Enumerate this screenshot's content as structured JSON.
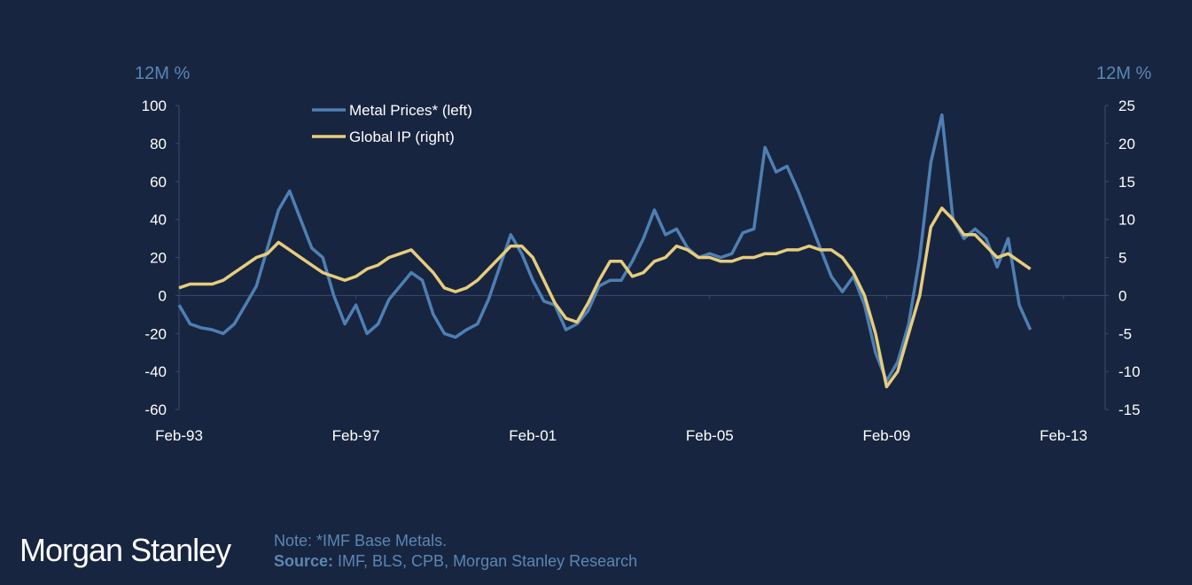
{
  "brand": "Morgan Stanley",
  "footer": {
    "note": "Note: *IMF Base Metals.",
    "source_label": "Source:",
    "source_text": " IMF, BLS, CPB, Morgan Stanley Research"
  },
  "colors": {
    "background": "#182540",
    "metal": "#4f7fb3",
    "ip": "#e6cd7c",
    "axis": "#3a4a6b",
    "unit_label": "#5b86b5"
  },
  "chart_data": {
    "type": "line",
    "title": "",
    "xlabel": "",
    "ylabel_left": "12M %",
    "ylabel_right": "12M %",
    "ylim_left": [
      -60,
      100
    ],
    "ylim_right": [
      -15,
      25
    ],
    "yticks_left": [
      -60,
      -40,
      -20,
      0,
      20,
      40,
      60,
      80,
      100
    ],
    "yticks_right": [
      -15,
      -10,
      -5,
      0,
      5,
      10,
      15,
      20,
      25
    ],
    "xlim": [
      "Feb-93",
      "Feb-13"
    ],
    "xticks": [
      "Feb-93",
      "Feb-97",
      "Feb-01",
      "Feb-05",
      "Feb-09",
      "Feb-13"
    ],
    "legend_position": "top-left",
    "x": [
      "Feb-93",
      "May-93",
      "Aug-93",
      "Nov-93",
      "Feb-94",
      "May-94",
      "Aug-94",
      "Nov-94",
      "Feb-95",
      "May-95",
      "Aug-95",
      "Nov-95",
      "Feb-96",
      "May-96",
      "Aug-96",
      "Nov-96",
      "Feb-97",
      "May-97",
      "Aug-97",
      "Nov-97",
      "Feb-98",
      "May-98",
      "Aug-98",
      "Nov-98",
      "Feb-99",
      "May-99",
      "Aug-99",
      "Nov-99",
      "Feb-00",
      "May-00",
      "Aug-00",
      "Nov-00",
      "Feb-01",
      "May-01",
      "Aug-01",
      "Nov-01",
      "Feb-02",
      "May-02",
      "Aug-02",
      "Nov-02",
      "Feb-03",
      "May-03",
      "Aug-03",
      "Nov-03",
      "Feb-04",
      "May-04",
      "Aug-04",
      "Nov-04",
      "Feb-05",
      "May-05",
      "Aug-05",
      "Nov-05",
      "Feb-06",
      "May-06",
      "Aug-06",
      "Nov-06",
      "Feb-07",
      "May-07",
      "Aug-07",
      "Nov-07",
      "Feb-08",
      "May-08",
      "Aug-08",
      "Nov-08",
      "Feb-09",
      "May-09",
      "Aug-09",
      "Nov-09",
      "Feb-10",
      "May-10",
      "Aug-10",
      "Nov-10",
      "Feb-11",
      "May-11",
      "Aug-11",
      "Nov-11",
      "Feb-12",
      "May-12"
    ],
    "series": [
      {
        "name": "Metal Prices* (left)",
        "axis": "left",
        "values": [
          -5,
          -15,
          -17,
          -18,
          -20,
          -15,
          -5,
          5,
          25,
          45,
          55,
          40,
          25,
          20,
          0,
          -15,
          -5,
          -20,
          -15,
          -2,
          5,
          12,
          8,
          -10,
          -20,
          -22,
          -18,
          -15,
          -2,
          15,
          32,
          22,
          8,
          -3,
          -5,
          -18,
          -15,
          -8,
          5,
          8,
          8,
          18,
          30,
          45,
          32,
          35,
          25,
          20,
          22,
          20,
          22,
          33,
          35,
          78,
          65,
          68,
          55,
          40,
          25,
          10,
          2,
          10,
          -5,
          -30,
          -45,
          -35,
          -15,
          20,
          70,
          95,
          40,
          30,
          35,
          30,
          15,
          30,
          -5,
          -18
        ]
      },
      {
        "name": "Global IP (right)",
        "axis": "right",
        "values": [
          1,
          1.5,
          1.5,
          1.5,
          2,
          3,
          4,
          5,
          5.5,
          7,
          6,
          5,
          4,
          3,
          2.5,
          2,
          2.5,
          3.5,
          4,
          5,
          5.5,
          6,
          4.5,
          3,
          1,
          0.5,
          1,
          2,
          3.5,
          5,
          6.5,
          6.5,
          5,
          2,
          -1,
          -3,
          -3.5,
          -1,
          2,
          4.5,
          4.5,
          2.5,
          3,
          4.5,
          5,
          6.5,
          6,
          5,
          5,
          4.5,
          4.5,
          5,
          5,
          5.5,
          5.5,
          6,
          6,
          6.5,
          6,
          6,
          5,
          3,
          0,
          -5,
          -12,
          -10,
          -5,
          0,
          9,
          11.5,
          10,
          8,
          8,
          6.5,
          5,
          5.5,
          4.5,
          3.5
        ]
      }
    ]
  }
}
